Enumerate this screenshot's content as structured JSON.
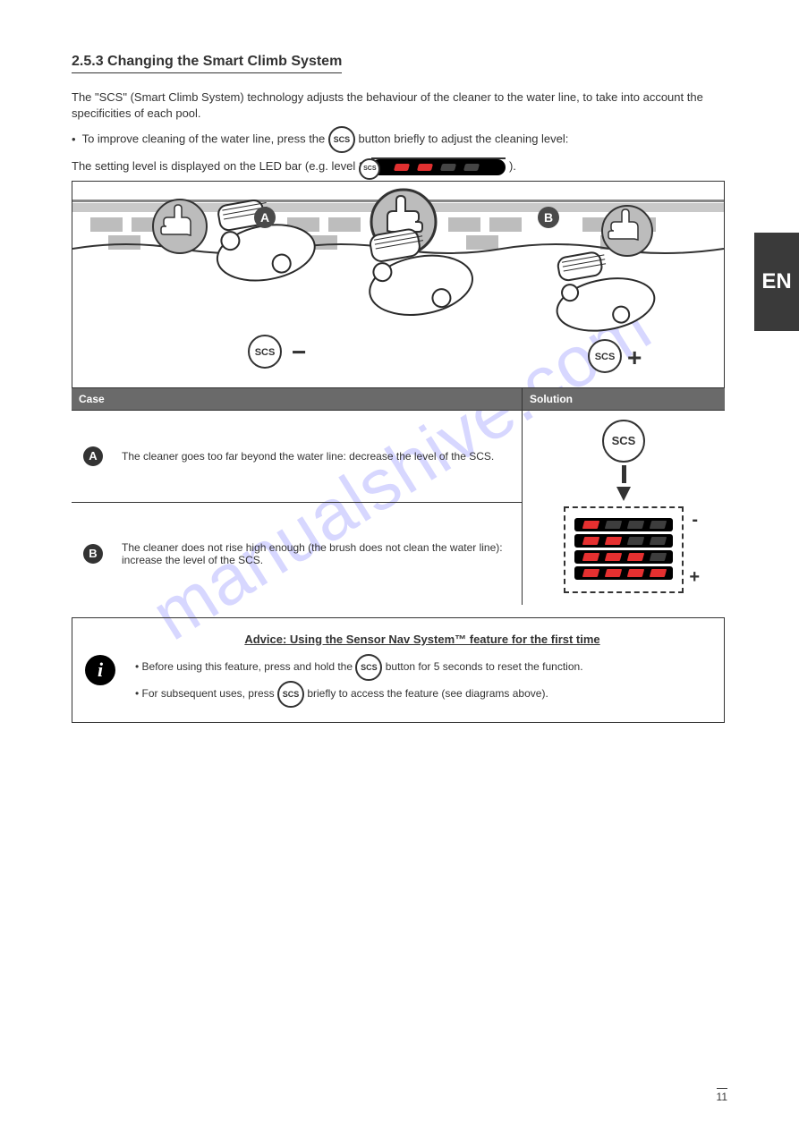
{
  "sideTab": "EN",
  "section": {
    "number": "2.5.3",
    "title": "2.5.3 Changing the Smart Climb System",
    "para1": "The \"SCS\" (Smart Climb System) technology adjusts the behaviour of the cleaner to the water line, to take into account the specificities of each pool.",
    "para2_before": "To improve cleaning of the water line, press the",
    "para2_after": "button briefly to adjust the cleaning level:",
    "para3_before": "The setting level is displayed on the LED bar (e.g. level 2:",
    "para3_after": ")."
  },
  "diagram": {
    "labelA": "A",
    "labelB": "B",
    "scs_minus": "−",
    "scs_plus": "+",
    "waterline_color": "#c9c9c9",
    "tile_color": "#bdbdbd",
    "robot_stroke": "#2b2b2b",
    "thumb_bg": "#bcbcbc"
  },
  "table": {
    "header_case": "Case",
    "header_solution": "Solution",
    "caseA": {
      "letter": "A",
      "text": "The cleaner goes too far beyond the water line: decrease the level of the SCS."
    },
    "caseB": {
      "letter": "B",
      "text": "The cleaner does not rise high enough (the brush does not clean the water line): increase the level of the SCS."
    },
    "sign_minus": "-",
    "sign_plus": "+"
  },
  "levels": {
    "bg": "#000000",
    "on": "#e63030",
    "off": "#3d3d3d",
    "rows": [
      [
        true,
        false,
        false,
        false
      ],
      [
        true,
        true,
        false,
        false
      ],
      [
        true,
        true,
        true,
        false
      ],
      [
        true,
        true,
        true,
        true
      ]
    ]
  },
  "info": {
    "title": "Advice: Using the Sensor Nav System™ feature for the first time",
    "line1_before": "Before using this feature, press and hold the",
    "line1_after": "button for 5 seconds to reset the function.",
    "line2_before": "For subsequent uses, press",
    "line2_after": "briefly to access the feature (see diagrams above)."
  },
  "pageNumber": "11",
  "watermark": "manualshive.com",
  "ledBar": {
    "segments": [
      true,
      true,
      false,
      false
    ],
    "on": "#e63030",
    "off": "#4a4a4a"
  }
}
